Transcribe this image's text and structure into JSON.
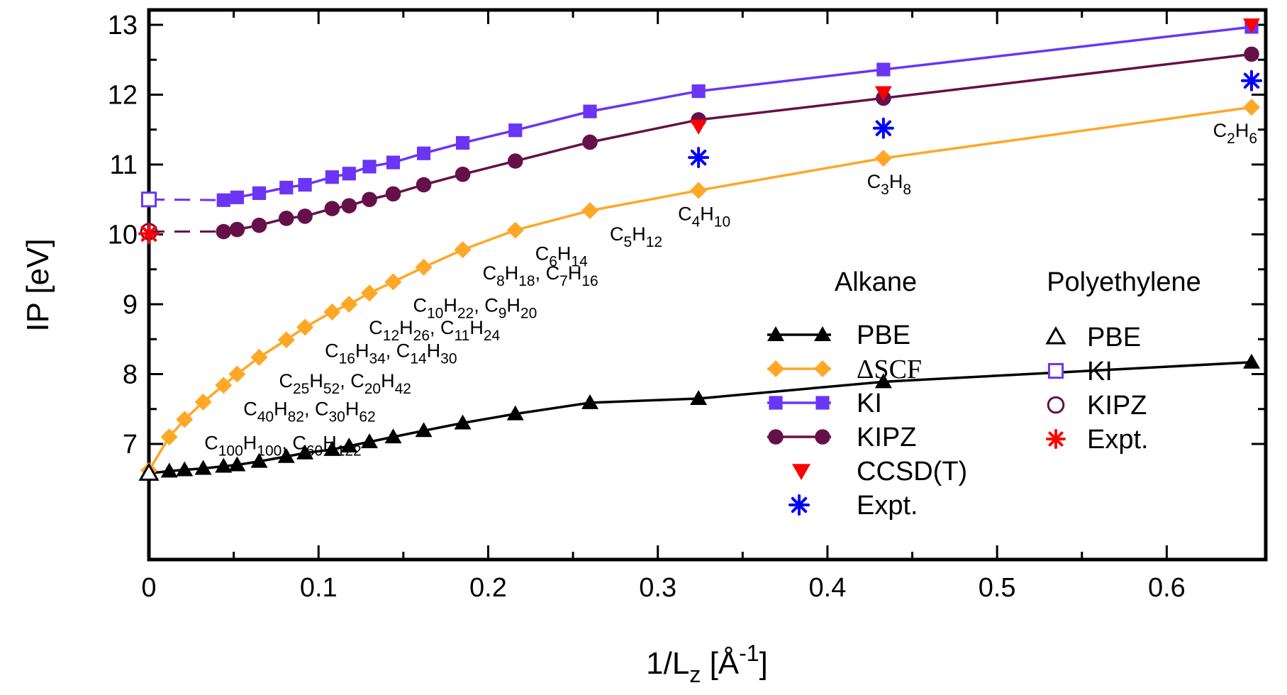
{
  "chart_data": {
    "type": "line",
    "xlabel": "1/L_z [Å^-1]",
    "ylabel": "IP [eV]",
    "xlim": [
      0,
      0.65
    ],
    "ylim": [
      6.5,
      13.2
    ],
    "xticks": [
      "0",
      "0.1",
      "0.2",
      "0.3",
      "0.4",
      "0.5",
      "0.6"
    ],
    "yticks": [
      "7",
      "8",
      "9",
      "10",
      "11",
      "12",
      "13"
    ],
    "legend": {
      "placement": "bottom-right",
      "alkane_title": "Alkane",
      "polyethylene_title": "Polyethylene"
    },
    "series": [
      {
        "name": "PBE",
        "group": "Alkane",
        "color": "#000000",
        "marker": "triangle-up",
        "line": "solid",
        "x": [
          0.0,
          0.012,
          0.021,
          0.032,
          0.044,
          0.052,
          0.065,
          0.081,
          0.092,
          0.108,
          0.118,
          0.13,
          0.144,
          0.162,
          0.185,
          0.216,
          0.26,
          0.324,
          0.433,
          0.65
        ],
        "y": [
          6.58,
          6.61,
          6.63,
          6.65,
          6.68,
          6.7,
          6.75,
          6.82,
          6.87,
          6.92,
          6.97,
          7.03,
          7.1,
          7.19,
          7.3,
          7.43,
          7.59,
          7.65,
          7.89,
          8.17
        ]
      },
      {
        "name": "ΔSCF",
        "group": "Alkane",
        "color": "#FFA726",
        "marker": "diamond",
        "line": "solid",
        "x": [
          0.0,
          0.012,
          0.021,
          0.032,
          0.044,
          0.052,
          0.065,
          0.081,
          0.092,
          0.108,
          0.118,
          0.13,
          0.144,
          0.162,
          0.185,
          0.216,
          0.26,
          0.324,
          0.433,
          0.65
        ],
        "y": [
          6.62,
          7.1,
          7.35,
          7.6,
          7.84,
          8.0,
          8.24,
          8.49,
          8.67,
          8.89,
          9.0,
          9.16,
          9.32,
          9.53,
          9.78,
          10.06,
          10.34,
          10.63,
          11.09,
          11.82
        ]
      },
      {
        "name": "KI",
        "group": "Alkane",
        "color": "#6A35F5",
        "marker": "square",
        "line": "solid",
        "x": [
          0.044,
          0.052,
          0.065,
          0.081,
          0.092,
          0.108,
          0.118,
          0.13,
          0.144,
          0.162,
          0.185,
          0.216,
          0.26,
          0.324,
          0.433,
          0.65
        ],
        "y": [
          10.49,
          10.53,
          10.59,
          10.67,
          10.71,
          10.82,
          10.87,
          10.97,
          11.03,
          11.16,
          11.31,
          11.49,
          11.76,
          12.05,
          12.36,
          12.97
        ]
      },
      {
        "name": "KIPZ",
        "group": "Alkane",
        "color": "#66104A",
        "marker": "circle",
        "line": "solid",
        "x": [
          0.044,
          0.052,
          0.065,
          0.081,
          0.092,
          0.108,
          0.118,
          0.13,
          0.144,
          0.162,
          0.185,
          0.216,
          0.26,
          0.324,
          0.433,
          0.65
        ],
        "y": [
          10.04,
          10.07,
          10.13,
          10.23,
          10.26,
          10.37,
          10.41,
          10.5,
          10.58,
          10.71,
          10.86,
          11.05,
          11.32,
          11.64,
          11.95,
          12.58
        ]
      },
      {
        "name": "CCSD(T)",
        "group": "Alkane",
        "color": "#FF0000",
        "marker": "triangle-down",
        "line": "none",
        "x": [
          0.324,
          0.433,
          0.65
        ],
        "y": [
          11.55,
          12.03,
          13.0
        ]
      },
      {
        "name": "Expt.",
        "group": "Alkane",
        "color": "#0000FF",
        "marker": "asterisk",
        "line": "none",
        "x": [
          0.324,
          0.433,
          0.65
        ],
        "y": [
          11.1,
          11.52,
          12.2
        ]
      },
      {
        "name": "PBE",
        "group": "Polyethylene",
        "color": "#000000",
        "marker": "triangle-up-open",
        "line": "none",
        "x": [
          0.0
        ],
        "y": [
          6.58
        ]
      },
      {
        "name": "KI",
        "group": "Polyethylene",
        "color": "#6A35F5",
        "marker": "square-open",
        "line": "none",
        "x": [
          0.0
        ],
        "y": [
          10.5
        ]
      },
      {
        "name": "KIPZ",
        "group": "Polyethylene",
        "color": "#66104A",
        "marker": "circle-open",
        "line": "none",
        "x": [
          0.0
        ],
        "y": [
          10.04
        ]
      },
      {
        "name": "Expt.",
        "group": "Polyethylene",
        "color": "#FF0000",
        "marker": "asterisk",
        "line": "none",
        "x": [
          0.0
        ],
        "y": [
          10.01
        ]
      }
    ],
    "extrapolations": [
      {
        "series": "KI",
        "color": "#6A35F5",
        "x": [
          0.0,
          0.044
        ],
        "y": [
          10.5,
          10.49
        ]
      },
      {
        "series": "KIPZ",
        "color": "#66104A",
        "x": [
          0.0,
          0.044
        ],
        "y": [
          10.04,
          10.04
        ]
      },
      {
        "series": "PBE",
        "color": "#000000",
        "x": [
          0.433,
          0.65
        ],
        "y": [
          7.89,
          8.17
        ]
      }
    ],
    "molecule_labels": [
      {
        "x": 0.65,
        "y": 11.82,
        "parts": [
          "C",
          "2",
          "H",
          "6"
        ]
      },
      {
        "x": 0.433,
        "y": 11.09,
        "parts": [
          "C",
          "3",
          "H",
          "8"
        ]
      },
      {
        "x": 0.324,
        "y": 10.63,
        "parts": [
          "C",
          "4",
          "H",
          "10"
        ]
      },
      {
        "x": 0.26,
        "y": 10.34,
        "parts": [
          "C",
          "5",
          "H",
          "12"
        ]
      },
      {
        "x": 0.216,
        "y": 10.06,
        "parts": [
          "C",
          "6",
          "H",
          "14"
        ]
      },
      {
        "x": 0.185,
        "y": 9.78,
        "parts": [
          "C",
          "8",
          "H",
          "18",
          ", C",
          "7",
          "H",
          "16"
        ]
      },
      {
        "x": 0.144,
        "y": 9.32,
        "parts": [
          "C",
          "10",
          "H",
          "22",
          ", C",
          "9",
          "H",
          "20"
        ]
      },
      {
        "x": 0.118,
        "y": 9.0,
        "parts": [
          "C",
          "12",
          "H",
          "26",
          ", C",
          "11",
          "H",
          "24"
        ]
      },
      {
        "x": 0.092,
        "y": 8.67,
        "parts": [
          "C",
          "16",
          "H",
          "34",
          ", C",
          "14",
          "H",
          "30"
        ]
      },
      {
        "x": 0.065,
        "y": 8.24,
        "parts": [
          "C",
          "25",
          "H",
          "52",
          ", C",
          "20",
          "H",
          "42"
        ]
      },
      {
        "x": 0.044,
        "y": 7.84,
        "parts": [
          "C",
          "40",
          "H",
          "82",
          ", C",
          "30",
          "H",
          "62"
        ]
      },
      {
        "x": 0.021,
        "y": 7.35,
        "parts": [
          "C",
          "100",
          "H",
          "100",
          ", C",
          "60",
          "H",
          "122"
        ]
      }
    ]
  }
}
